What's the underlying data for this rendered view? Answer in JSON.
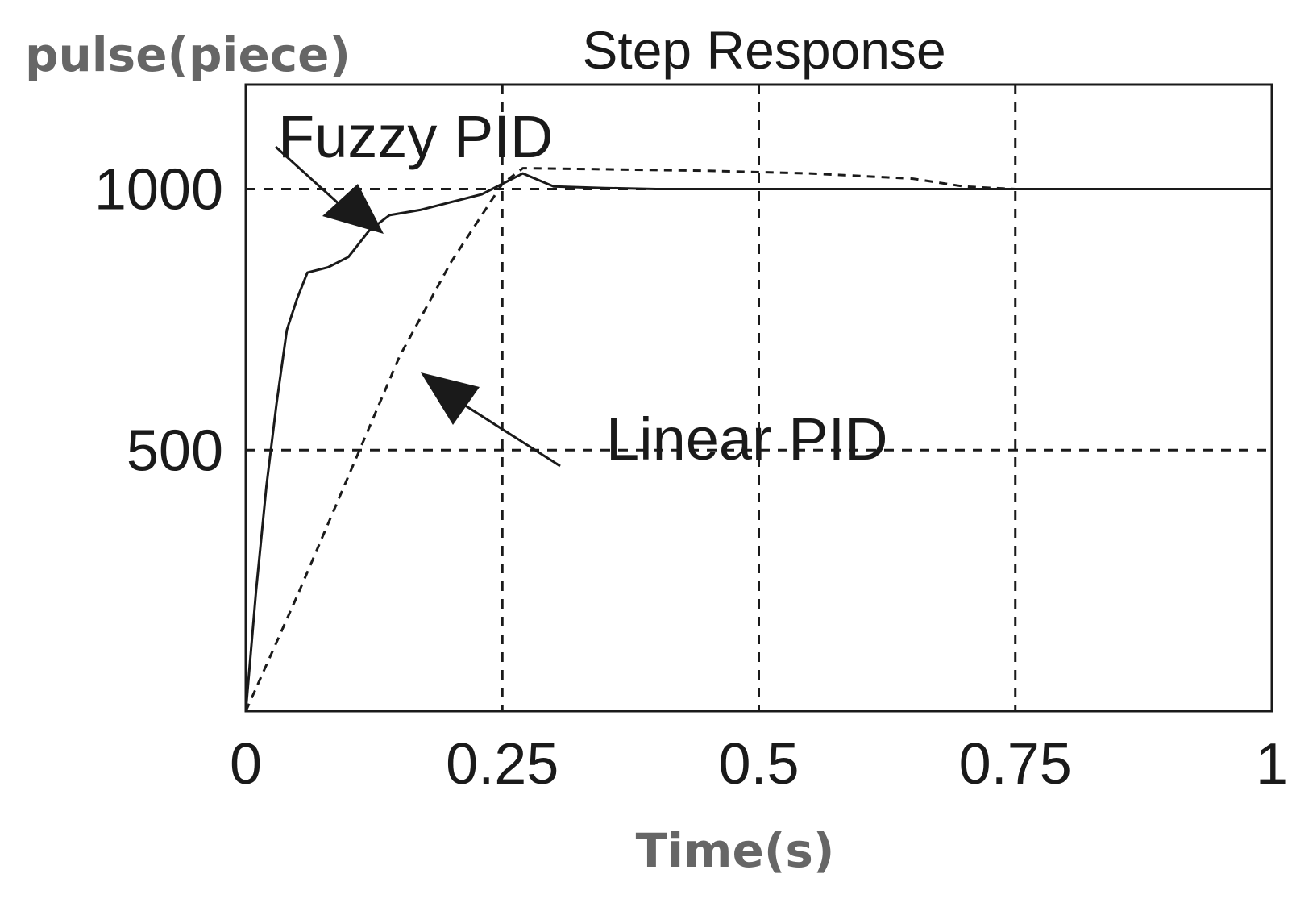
{
  "chart_data": {
    "type": "line",
    "title": "Step Response",
    "xlabel": "Time(s)",
    "ylabel": "pulse(piece)",
    "xlim": [
      0,
      1
    ],
    "ylim": [
      0,
      1200
    ],
    "grid": true,
    "x_ticks": [
      "0",
      "0.25",
      "0.5",
      "0.75",
      "1"
    ],
    "x_tick_values": [
      0,
      0.25,
      0.5,
      0.75,
      1
    ],
    "y_ticks": [
      "500",
      "1000"
    ],
    "y_tick_values": [
      500,
      1000
    ],
    "series": [
      {
        "name": "Fuzzy PID",
        "style": "solid",
        "x": [
          0,
          0.01,
          0.02,
          0.03,
          0.04,
          0.05,
          0.06,
          0.08,
          0.1,
          0.12,
          0.14,
          0.17,
          0.2,
          0.23,
          0.25,
          0.27,
          0.3,
          0.35,
          0.4,
          0.5,
          0.6,
          0.7,
          0.8,
          0.9,
          1
        ],
        "y": [
          0,
          230,
          430,
          590,
          730,
          790,
          840,
          850,
          870,
          920,
          950,
          960,
          975,
          990,
          1010,
          1030,
          1005,
          1002,
          1000,
          1000,
          1000,
          1000,
          1000,
          1000,
          1000
        ]
      },
      {
        "name": "Linear PID",
        "style": "dashed",
        "x": [
          0,
          0.05,
          0.1,
          0.15,
          0.2,
          0.25,
          0.27,
          0.35,
          0.45,
          0.55,
          0.65,
          0.7,
          0.75,
          0.8
        ],
        "y": [
          0,
          220,
          450,
          680,
          860,
          1010,
          1040,
          1038,
          1035,
          1030,
          1020,
          1005,
          1000,
          1000
        ]
      }
    ],
    "annotations": [
      {
        "text": "Fuzzy PID"
      },
      {
        "text": "Linear PID"
      }
    ]
  }
}
